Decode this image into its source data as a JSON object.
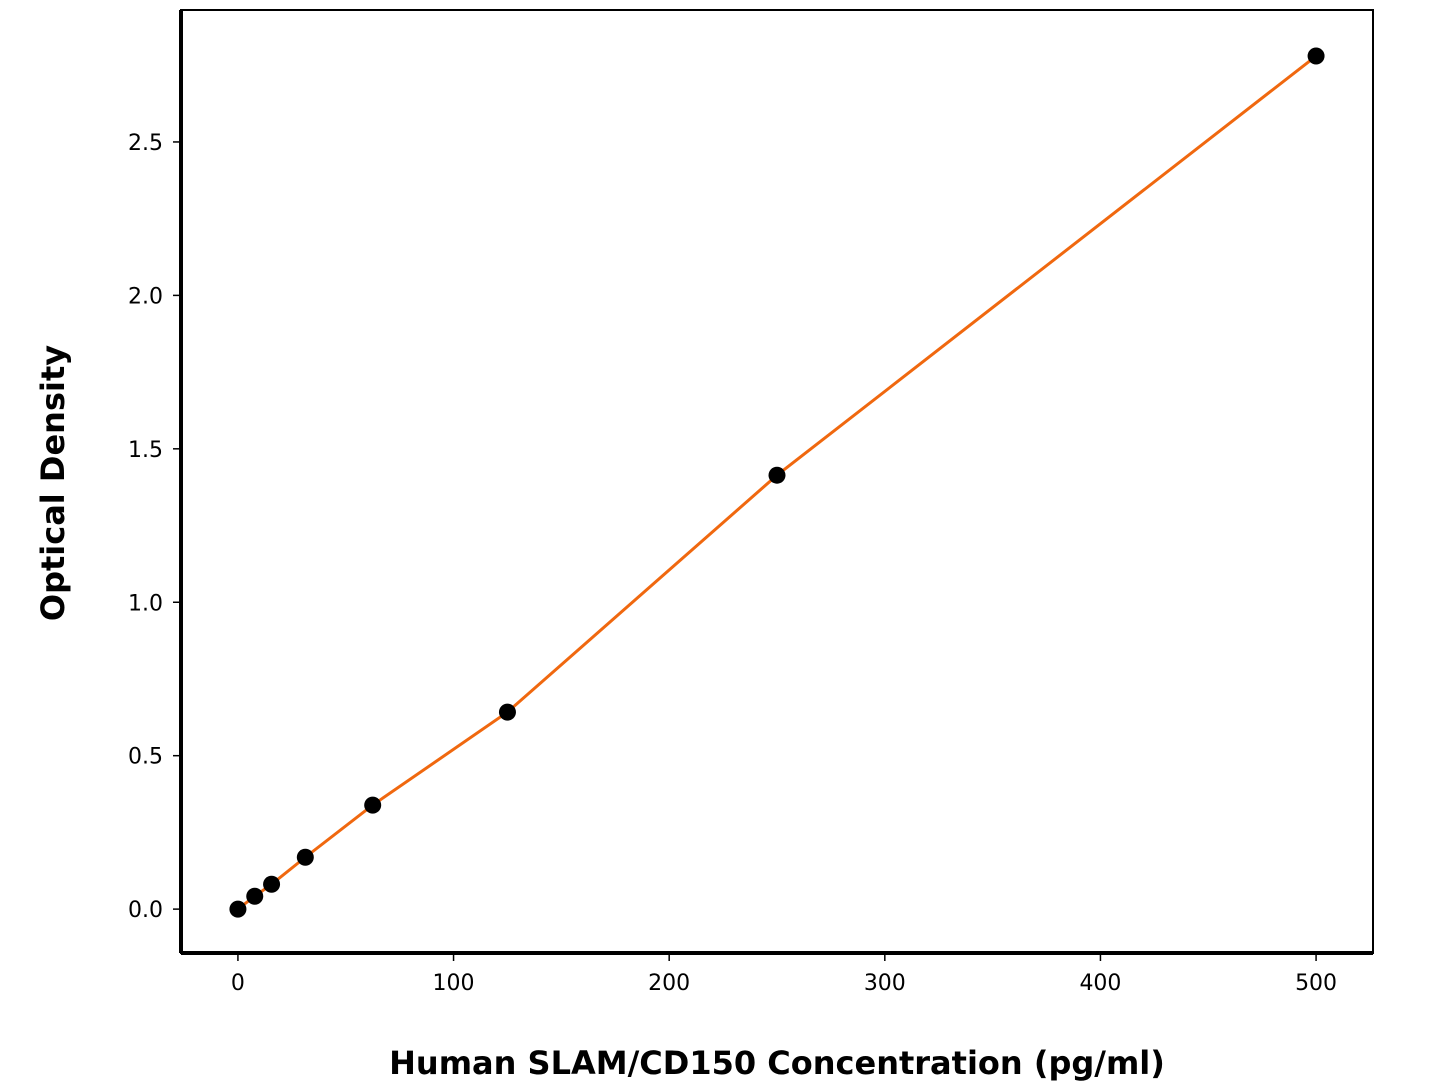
{
  "chart_data": {
    "type": "scatter",
    "title": "",
    "xlabel": "Human SLAM/CD150 Concentration (pg/ml)",
    "ylabel": "Optical Density",
    "xlim": [
      -26.4,
      526.4
    ],
    "ylim": [
      -0.143,
      2.93
    ],
    "xticks": [
      0,
      100,
      200,
      300,
      400,
      500
    ],
    "xtick_labels": [
      "0",
      "100",
      "200",
      "300",
      "400",
      "500"
    ],
    "yticks": [
      0.0,
      0.5,
      1.0,
      1.5,
      2.0,
      2.5
    ],
    "ytick_labels": [
      "0.0",
      "0.5",
      "1.0",
      "1.5",
      "2.0",
      "2.5"
    ],
    "grid": false,
    "series": [
      {
        "points": [
          {
            "x": 0,
            "y": 0.0
          },
          {
            "x": 7.8,
            "y": 0.042
          },
          {
            "x": 15.6,
            "y": 0.081
          },
          {
            "x": 31.25,
            "y": 0.169
          },
          {
            "x": 62.5,
            "y": 0.339
          },
          {
            "x": 125,
            "y": 0.642
          },
          {
            "x": 250,
            "y": 1.414
          },
          {
            "x": 500,
            "y": 2.78
          }
        ],
        "marker_color": "#000000",
        "line_color": "#f0680f"
      }
    ]
  }
}
